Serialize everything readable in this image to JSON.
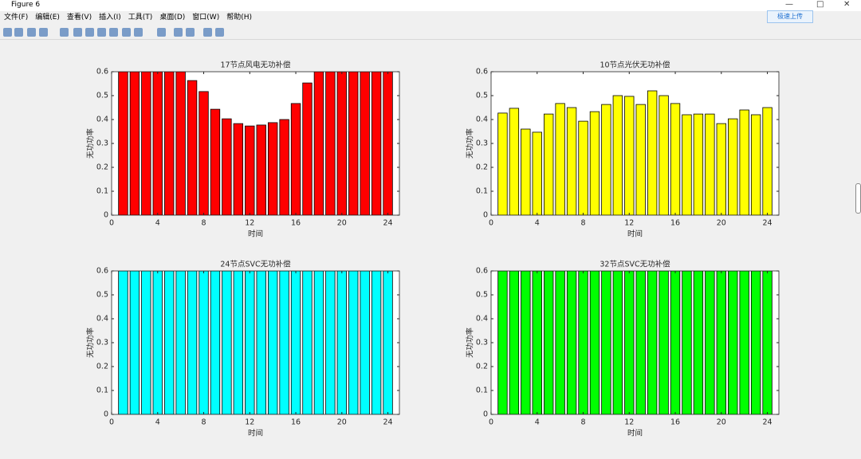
{
  "window": {
    "title": "Figure 6",
    "upload_button": "极速上传",
    "menu": [
      "文件(F)",
      "编辑(E)",
      "查看(V)",
      "插入(I)",
      "工具(T)",
      "桌面(D)",
      "窗口(W)",
      "帮助(H)"
    ]
  },
  "chart_data": [
    {
      "type": "bar",
      "title": "17节点风电无功补偿",
      "xlabel": "时间",
      "ylabel": "无功功率",
      "color": "#ff0000",
      "x": [
        1,
        2,
        3,
        4,
        5,
        6,
        7,
        8,
        9,
        10,
        11,
        12,
        13,
        14,
        15,
        16,
        17,
        18,
        19,
        20,
        21,
        22,
        23,
        24
      ],
      "values": [
        0.6,
        0.6,
        0.6,
        0.6,
        0.6,
        0.6,
        0.563,
        0.517,
        0.443,
        0.403,
        0.383,
        0.373,
        0.377,
        0.387,
        0.4,
        0.467,
        0.553,
        0.6,
        0.6,
        0.6,
        0.6,
        0.6,
        0.6,
        0.6
      ],
      "xlim": [
        0,
        25
      ],
      "ylim": [
        0,
        0.6
      ],
      "xticks": [
        0,
        4,
        8,
        12,
        16,
        20,
        24
      ],
      "yticks": [
        0,
        0.1,
        0.2,
        0.3,
        0.4,
        0.5,
        0.6
      ]
    },
    {
      "type": "bar",
      "title": "10节点光伏无功补偿",
      "xlabel": "时间",
      "ylabel": "无功功率",
      "color": "#ffff00",
      "x": [
        1,
        2,
        3,
        4,
        5,
        6,
        7,
        8,
        9,
        10,
        11,
        12,
        13,
        14,
        15,
        16,
        17,
        18,
        19,
        20,
        21,
        22,
        23,
        24
      ],
      "values": [
        0.427,
        0.447,
        0.36,
        0.347,
        0.423,
        0.467,
        0.45,
        0.393,
        0.433,
        0.463,
        0.5,
        0.497,
        0.463,
        0.52,
        0.5,
        0.467,
        0.42,
        0.423,
        0.423,
        0.383,
        0.403,
        0.44,
        0.42,
        0.45
      ],
      "xlim": [
        0,
        25
      ],
      "ylim": [
        0,
        0.6
      ],
      "xticks": [
        0,
        4,
        8,
        12,
        16,
        20,
        24
      ],
      "yticks": [
        0,
        0.1,
        0.2,
        0.3,
        0.4,
        0.5,
        0.6
      ]
    },
    {
      "type": "bar",
      "title": "24节点SVC无功补偿",
      "xlabel": "时间",
      "ylabel": "无功功率",
      "color": "#00ffff",
      "x": [
        1,
        2,
        3,
        4,
        5,
        6,
        7,
        8,
        9,
        10,
        11,
        12,
        13,
        14,
        15,
        16,
        17,
        18,
        19,
        20,
        21,
        22,
        23,
        24
      ],
      "values": [
        0.6,
        0.6,
        0.6,
        0.6,
        0.6,
        0.6,
        0.6,
        0.6,
        0.6,
        0.6,
        0.6,
        0.6,
        0.6,
        0.6,
        0.6,
        0.6,
        0.6,
        0.6,
        0.6,
        0.6,
        0.6,
        0.6,
        0.6,
        0.6
      ],
      "xlim": [
        0,
        25
      ],
      "ylim": [
        0,
        0.6
      ],
      "xticks": [
        0,
        4,
        8,
        12,
        16,
        20,
        24
      ],
      "yticks": [
        0,
        0.1,
        0.2,
        0.3,
        0.4,
        0.5,
        0.6
      ]
    },
    {
      "type": "bar",
      "title": "32节点SVC无功补偿",
      "xlabel": "时间",
      "ylabel": "无功功率",
      "color": "#00ff00",
      "x": [
        1,
        2,
        3,
        4,
        5,
        6,
        7,
        8,
        9,
        10,
        11,
        12,
        13,
        14,
        15,
        16,
        17,
        18,
        19,
        20,
        21,
        22,
        23,
        24
      ],
      "values": [
        0.6,
        0.6,
        0.6,
        0.6,
        0.6,
        0.6,
        0.6,
        0.6,
        0.6,
        0.6,
        0.6,
        0.6,
        0.6,
        0.6,
        0.6,
        0.6,
        0.6,
        0.6,
        0.6,
        0.6,
        0.6,
        0.6,
        0.6,
        0.6
      ],
      "xlim": [
        0,
        25
      ],
      "ylim": [
        0,
        0.6
      ],
      "xticks": [
        0,
        4,
        8,
        12,
        16,
        20,
        24
      ],
      "yticks": [
        0,
        0.1,
        0.2,
        0.3,
        0.4,
        0.5,
        0.6
      ]
    }
  ]
}
